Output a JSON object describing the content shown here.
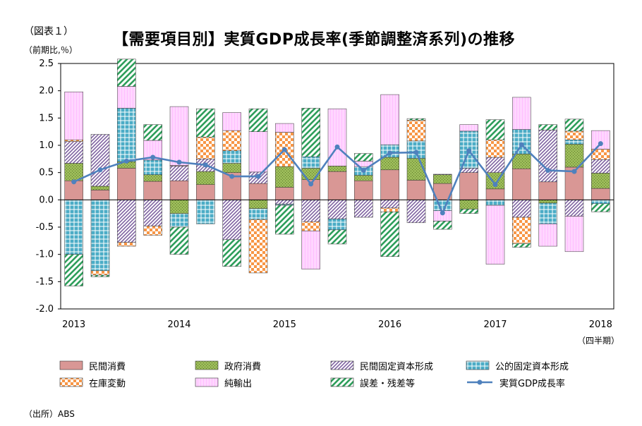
{
  "figure_label": "（図表１）",
  "unit_label": "（前期比,％）",
  "title": "【需要項目別】実質GDP成長率(季節調整済系列)の推移",
  "x_unit": "（四半期）",
  "source": "（出所）ABS",
  "colors": {
    "private_consumption": "#d99795",
    "government_consumption": "#9bbb59",
    "private_fixed_investment": "#8064a2",
    "public_fixed_investment": "#4bacc6",
    "inventory": "#f79646",
    "net_exports": "#ff99ff",
    "discrepancy": "#2e9e5b",
    "gdp_line": "#4f81bd"
  },
  "chart_data": {
    "type": "bar",
    "stacked": true,
    "ylim": [
      -2.0,
      2.5
    ],
    "yticks": [
      "2.5",
      "2.0",
      "1.5",
      "1.0",
      "0.5",
      "0.0",
      "-0.5",
      "-1.0",
      "-1.5",
      "-2.0"
    ],
    "year_labels": [
      "2013",
      "2014",
      "2015",
      "2016",
      "2017",
      "2018"
    ],
    "categories": [
      "2013Q1",
      "2013Q2",
      "2013Q3",
      "2013Q4",
      "2014Q1",
      "2014Q2",
      "2014Q3",
      "2014Q4",
      "2015Q1",
      "2015Q2",
      "2015Q3",
      "2015Q4",
      "2016Q1",
      "2016Q2",
      "2016Q3",
      "2016Q4",
      "2017Q1",
      "2017Q2",
      "2017Q3",
      "2017Q4",
      "2018Q1"
    ],
    "grid": false,
    "legend_position": "bottom",
    "series": [
      {
        "name": "民間消費",
        "key": "private_consumption",
        "pattern": "solid",
        "values": [
          0.35,
          0.18,
          0.58,
          0.34,
          0.35,
          0.28,
          0.5,
          0.3,
          0.23,
          0.37,
          0.52,
          0.35,
          0.55,
          0.36,
          0.3,
          0.5,
          0.2,
          0.57,
          0.33,
          0.6,
          0.21
        ]
      },
      {
        "name": "政府消費",
        "key": "government_consumption",
        "pattern": "dots",
        "values": [
          0.32,
          0.07,
          0.12,
          0.12,
          -0.25,
          0.24,
          0.17,
          -0.16,
          0.38,
          0.21,
          0.1,
          0.1,
          0.23,
          0.4,
          0.16,
          -0.17,
          0.3,
          0.27,
          -0.06,
          0.42,
          0.28
        ]
      },
      {
        "name": "民間固定資本形成",
        "key": "private_fixed_investment",
        "pattern": "diag",
        "values": [
          0.4,
          0.95,
          -0.78,
          -0.48,
          0.27,
          0.23,
          -0.73,
          0.21,
          -0.08,
          -0.4,
          -0.35,
          -0.32,
          -0.15,
          -0.42,
          0.01,
          0.08,
          0.28,
          -0.32,
          0.95,
          -0.3,
          0.25
        ]
      },
      {
        "name": "公的固定資本形成",
        "key": "public_fixed_investment",
        "pattern": "grid",
        "values": [
          -1.0,
          -1.3,
          0.98,
          0.27,
          -0.25,
          -0.44,
          0.23,
          -0.2,
          -0.02,
          0.21,
          -0.2,
          0.16,
          0.23,
          0.32,
          -0.2,
          0.68,
          -0.1,
          0.45,
          -0.38,
          0.08,
          -0.07
        ]
      },
      {
        "name": "在庫変動",
        "key": "inventory",
        "pattern": "checker",
        "values": [
          0.03,
          -0.08,
          -0.07,
          -0.17,
          0.01,
          0.4,
          0.37,
          -0.98,
          0.63,
          -0.17,
          0.0,
          0.0,
          -0.07,
          0.38,
          0.0,
          0.0,
          0.32,
          -0.48,
          0.0,
          0.16,
          0.19
        ]
      },
      {
        "name": "純輸出",
        "key": "net_exports",
        "pattern": "vlines",
        "values": [
          0.88,
          0.0,
          0.4,
          0.36,
          1.08,
          0.0,
          0.33,
          0.74,
          0.16,
          -0.7,
          1.05,
          0.1,
          0.92,
          0.0,
          -0.19,
          0.12,
          -1.08,
          0.59,
          -0.41,
          -0.65,
          0.34
        ]
      },
      {
        "name": "誤差・残差等",
        "key": "discrepancy",
        "pattern": "stripe",
        "values": [
          -0.58,
          -0.03,
          0.5,
          0.29,
          -0.5,
          0.52,
          -0.49,
          0.42,
          -0.53,
          0.89,
          -0.26,
          0.14,
          -0.82,
          0.03,
          -0.15,
          -0.08,
          0.37,
          -0.07,
          0.1,
          0.22,
          -0.15
        ]
      }
    ],
    "line": {
      "name": "実質GDP成長率",
      "key": "gdp_line",
      "values": [
        0.33,
        0.55,
        0.71,
        0.78,
        0.69,
        0.64,
        0.43,
        0.43,
        0.92,
        0.29,
        0.97,
        0.54,
        0.86,
        0.87,
        -0.24,
        0.9,
        0.28,
        1.01,
        0.54,
        0.52,
        1.03
      ]
    }
  }
}
